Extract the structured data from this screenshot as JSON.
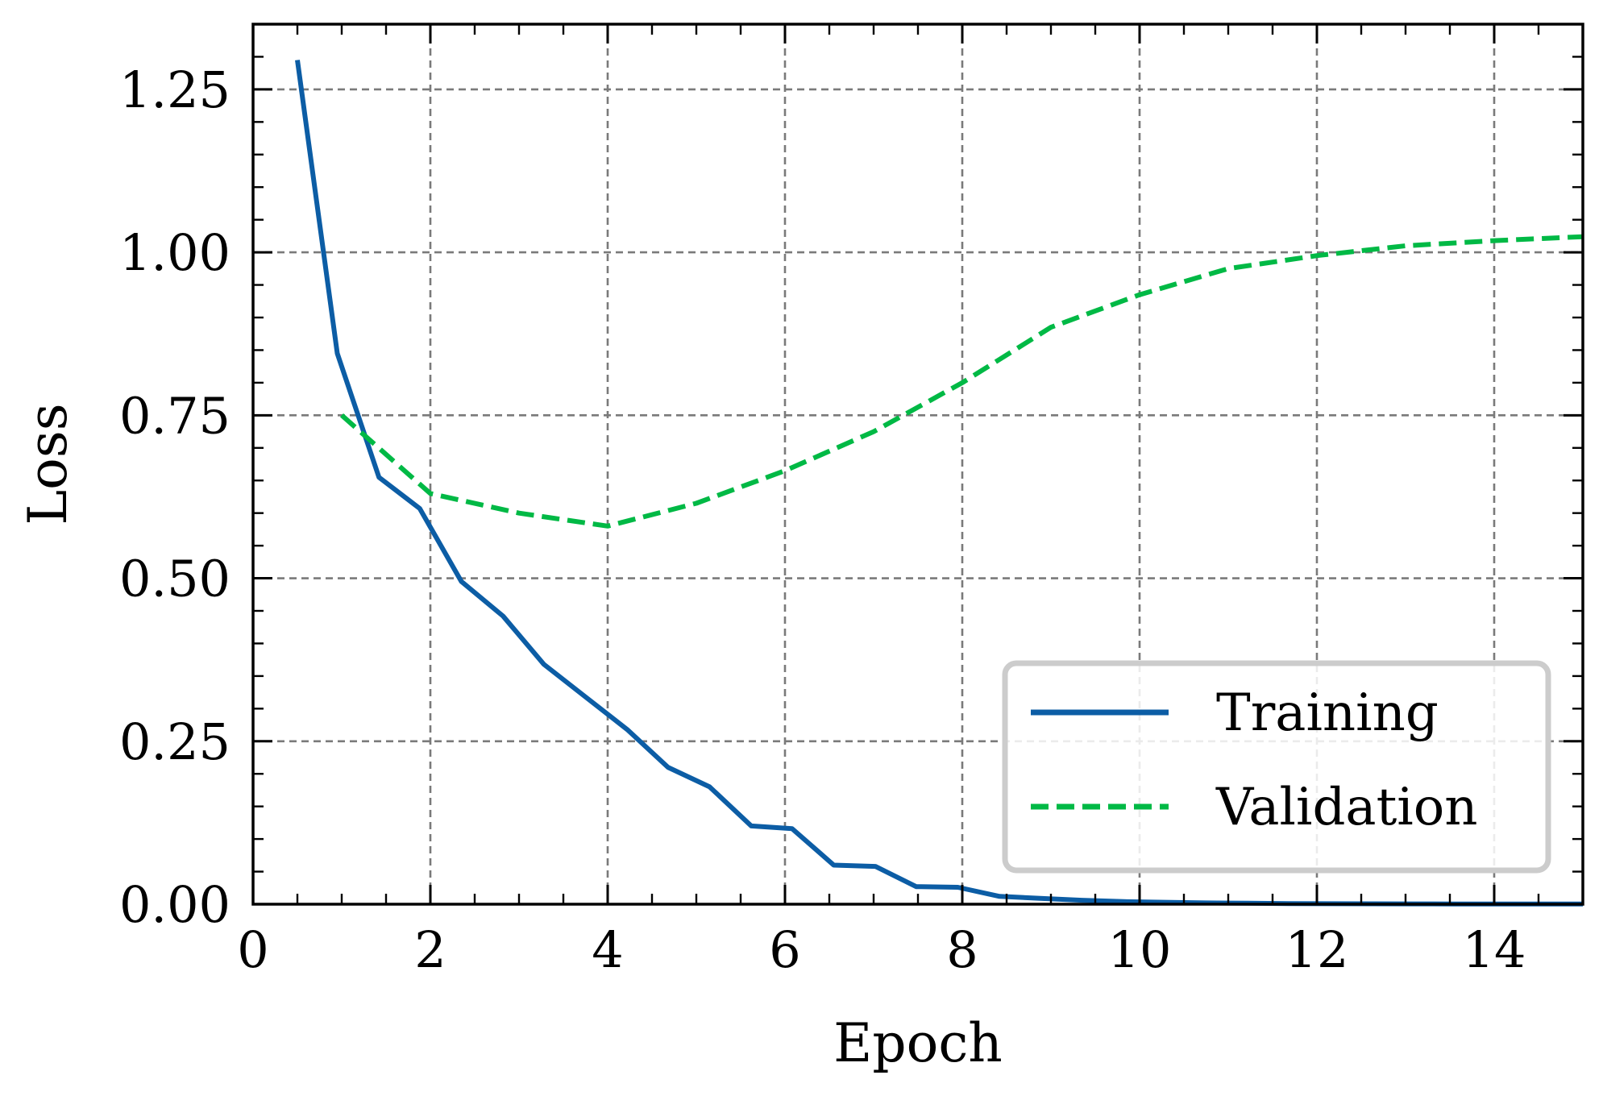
{
  "chart_data": {
    "type": "line",
    "xlabel": "Epoch",
    "ylabel": "Loss",
    "xlim": [
      0,
      15
    ],
    "ylim": [
      0,
      1.35
    ],
    "x_ticks": [
      0,
      2,
      4,
      6,
      8,
      10,
      12,
      14
    ],
    "y_ticks": [
      0,
      0.25,
      0.5,
      0.75,
      1.0,
      1.25
    ],
    "x_tick_labels": [
      "0",
      "2",
      "4",
      "6",
      "8",
      "10",
      "12",
      "14"
    ],
    "y_tick_labels": [
      "0.00",
      "0.25",
      "0.50",
      "0.75",
      "1.00",
      "1.25"
    ],
    "grid": true,
    "legend_position": "bottom-right",
    "series": [
      {
        "name": "Training",
        "color": "#0C5DA5",
        "style": "solid",
        "x": [
          0.5,
          0.95,
          1.42,
          1.88,
          2.35,
          2.82,
          3.28,
          3.75,
          4.22,
          4.68,
          5.15,
          5.62,
          6.08,
          6.55,
          7.02,
          7.48,
          7.95,
          8.42,
          8.88,
          9.35,
          9.82,
          10.28,
          10.75,
          11.22,
          11.68,
          12.15,
          12.62,
          13.08,
          13.55,
          14.02,
          14.48,
          15.0
        ],
        "y": [
          1.295,
          0.845,
          0.655,
          0.607,
          0.495,
          0.442,
          0.368,
          0.318,
          0.268,
          0.21,
          0.18,
          0.12,
          0.116,
          0.06,
          0.058,
          0.027,
          0.026,
          0.012,
          0.009,
          0.006,
          0.004,
          0.003,
          0.002,
          0.0015,
          0.001,
          0.0008,
          0.0006,
          0.0005,
          0.0004,
          0.0003,
          0.0002,
          0.0002
        ]
      },
      {
        "name": "Validation",
        "color": "#00B945",
        "style": "dashed",
        "x": [
          1,
          2,
          3,
          4,
          5,
          6,
          7,
          8,
          9,
          10,
          11,
          12,
          13,
          14,
          15
        ],
        "y": [
          0.75,
          0.63,
          0.6,
          0.58,
          0.615,
          0.665,
          0.725,
          0.8,
          0.885,
          0.935,
          0.975,
          0.995,
          1.01,
          1.018,
          1.024
        ]
      }
    ]
  }
}
